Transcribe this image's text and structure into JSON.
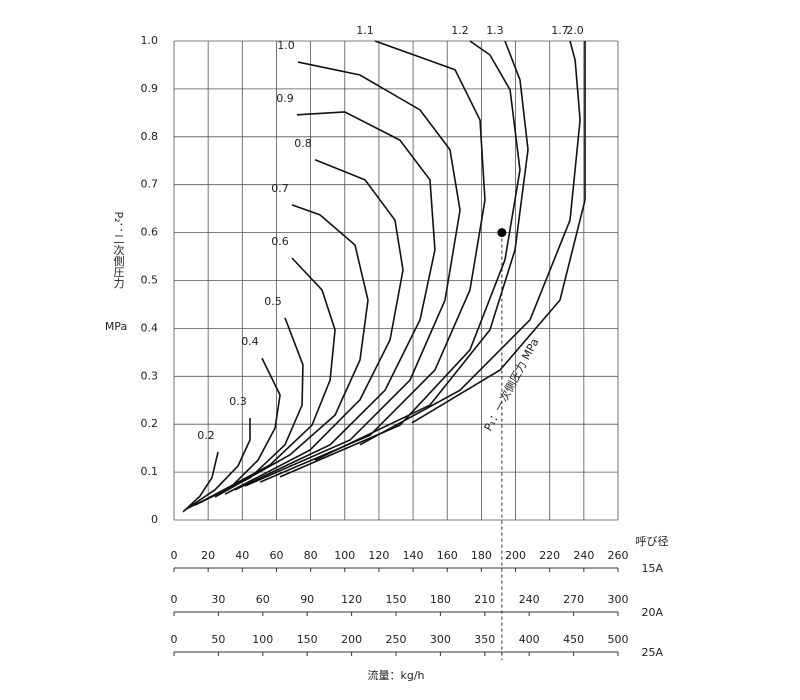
{
  "chart_data": {
    "type": "line",
    "y_label": "P₂：二次側圧力",
    "y_unit": "MPa",
    "x_label": "流量：kg/h",
    "size_label": "呼び径",
    "annotation": "P₁：一次側圧力 MPa",
    "ylim": [
      0,
      1
    ],
    "yticks": [
      0,
      0.1,
      0.2,
      0.3,
      0.4,
      0.5,
      0.6,
      0.7,
      0.8,
      0.9,
      {
        "value": 1,
        "label": "1.0"
      }
    ],
    "grid": true,
    "x_axes": [
      {
        "name": "15A",
        "xlim": [
          0,
          260
        ],
        "xticks": [
          0,
          20,
          40,
          60,
          80,
          100,
          120,
          140,
          160,
          180,
          200,
          220,
          240,
          260
        ]
      },
      {
        "name": "20A",
        "xlim": [
          0,
          300
        ],
        "xticks": [
          0,
          30,
          60,
          90,
          120,
          150,
          180,
          210,
          240,
          270,
          300
        ]
      },
      {
        "name": "25A",
        "xlim": [
          0,
          500
        ],
        "xticks": [
          0,
          50,
          100,
          150,
          200,
          250,
          300,
          350,
          400,
          450,
          500
        ]
      }
    ],
    "point": {
      "x": 192,
      "y": 0.6
    },
    "series": [
      {
        "name": "0.2",
        "color": "#111111",
        "x": [
          5.3,
          15.2,
          22.2,
          25.8
        ],
        "values": [
          0.017,
          0.05,
          0.088,
          0.142
        ]
      },
      {
        "name": "0.3",
        "color": "#111111",
        "x": [
          6.4,
          24.0,
          37.5,
          44.5,
          44.5
        ],
        "values": [
          0.021,
          0.063,
          0.113,
          0.167,
          0.213
        ]
      },
      {
        "name": "0.4",
        "color": "#111111",
        "x": [
          8.2,
          32.8,
          49.2,
          59.2,
          62.1,
          51.5
        ],
        "values": [
          0.025,
          0.067,
          0.125,
          0.192,
          0.261,
          0.338
        ]
      },
      {
        "name": "0.5",
        "color": "#111111",
        "x": [
          12.3,
          44.5,
          65.0,
          75.0,
          75.5,
          65.0
        ],
        "values": [
          0.031,
          0.088,
          0.157,
          0.24,
          0.324,
          0.422
        ]
      },
      {
        "name": "0.6",
        "color": "#111111",
        "x": [
          18.2,
          56.2,
          80.8,
          91.4,
          94.3,
          86.7,
          69.1
        ],
        "values": [
          0.042,
          0.115,
          0.198,
          0.292,
          0.397,
          0.48,
          0.547
        ]
      },
      {
        "name": "0.7",
        "color": "#111111",
        "x": [
          24.0,
          67.9,
          94.3,
          108.9,
          113.6,
          106.0,
          85.5,
          69.1
        ],
        "values": [
          0.048,
          0.136,
          0.219,
          0.334,
          0.459,
          0.574,
          0.637,
          0.658
        ]
      },
      {
        "name": "0.8",
        "color": "#111111",
        "x": [
          29.9,
          79.6,
          108.9,
          126.5,
          134.1,
          129.4,
          111.9,
          82.6
        ],
        "values": [
          0.054,
          0.146,
          0.251,
          0.376,
          0.522,
          0.626,
          0.71,
          0.752
        ]
      },
      {
        "name": "0.9",
        "color": "#111111",
        "x": [
          35.7,
          91.4,
          123.6,
          144.1,
          152.8,
          149.9,
          132.3,
          100.0,
          72.0
        ],
        "values": [
          0.063,
          0.157,
          0.271,
          0.418,
          0.564,
          0.71,
          0.793,
          0.852,
          0.846
        ]
      },
      {
        "name": "1.0",
        "color": "#111111",
        "x": [
          41.6,
          103.1,
          138.2,
          158.7,
          167.5,
          161.6,
          144.1,
          108.9,
          72.6
        ],
        "values": [
          0.071,
          0.167,
          0.292,
          0.459,
          0.647,
          0.773,
          0.856,
          0.929,
          0.956
        ]
      },
      {
        "name": "1.1",
        "color": "#111111",
        "x": [
          50.4,
          114.8,
          152.8,
          173.3,
          182.1,
          179.2,
          164.6,
          117.7
        ],
        "values": [
          0.079,
          0.177,
          0.313,
          0.48,
          0.668,
          0.835,
          0.94,
          1.0
        ]
      },
      {
        "name": "1.2",
        "color": "#111111",
        "x": [
          62.1,
          132.3,
          173.3,
          193.8,
          202.6,
          196.8,
          185.0,
          173.3
        ],
        "values": [
          0.09,
          0.198,
          0.355,
          0.543,
          0.731,
          0.898,
          0.971,
          1.0
        ]
      },
      {
        "name": "1.3",
        "color": "#111111",
        "x": [
          82.6,
          149.9,
          185.0,
          199.7,
          207.3,
          202.6,
          193.8
        ],
        "values": [
          0.125,
          0.24,
          0.397,
          0.564,
          0.773,
          0.919,
          1.0
        ]
      },
      {
        "name": "1.7",
        "color": "#111111",
        "x": [
          108.9,
          167.5,
          208.5,
          231.9,
          237.8,
          234.9,
          231.9
        ],
        "values": [
          0.157,
          0.271,
          0.418,
          0.626,
          0.835,
          0.96,
          1.0
        ]
      },
      {
        "name": "2.0",
        "color": "#111111",
        "x": [
          139.4,
          190.9,
          226.0,
          240.7,
          240.7
        ],
        "values": [
          0.203,
          0.313,
          0.459,
          0.668,
          1.0
        ]
      }
    ]
  }
}
